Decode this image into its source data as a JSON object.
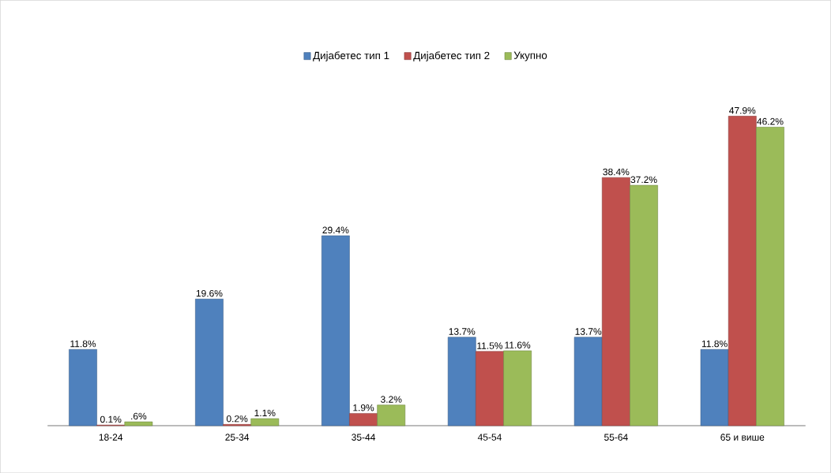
{
  "chart_data": {
    "type": "bar",
    "categories": [
      "18-24",
      "25-34",
      "35-44",
      "45-54",
      "55-64",
      "65 и више"
    ],
    "series": [
      {
        "name": "Дијабетес тип 1",
        "color": "#4f81bd",
        "values": [
          11.8,
          19.6,
          29.4,
          13.7,
          13.7,
          11.8
        ],
        "value_labels": [
          "11.8%",
          "19.6%",
          "29.4%",
          "13.7%",
          "13.7%",
          "11.8%"
        ]
      },
      {
        "name": "Дијабетес тип 2",
        "color": "#c0504d",
        "values": [
          0.1,
          0.2,
          1.9,
          11.5,
          38.4,
          47.9
        ],
        "value_labels": [
          "0.1%",
          "0.2%",
          "1.9%",
          "11.5%",
          "38.4%",
          "47.9%"
        ]
      },
      {
        "name": "Укупно",
        "color": "#9bbb59",
        "values": [
          0.6,
          1.1,
          3.2,
          11.6,
          37.2,
          46.2
        ],
        "value_labels": [
          ".6%",
          "1.1%",
          "3.2%",
          "11.6%",
          "37.2%",
          "46.2%"
        ]
      }
    ],
    "legend": "top"
  }
}
